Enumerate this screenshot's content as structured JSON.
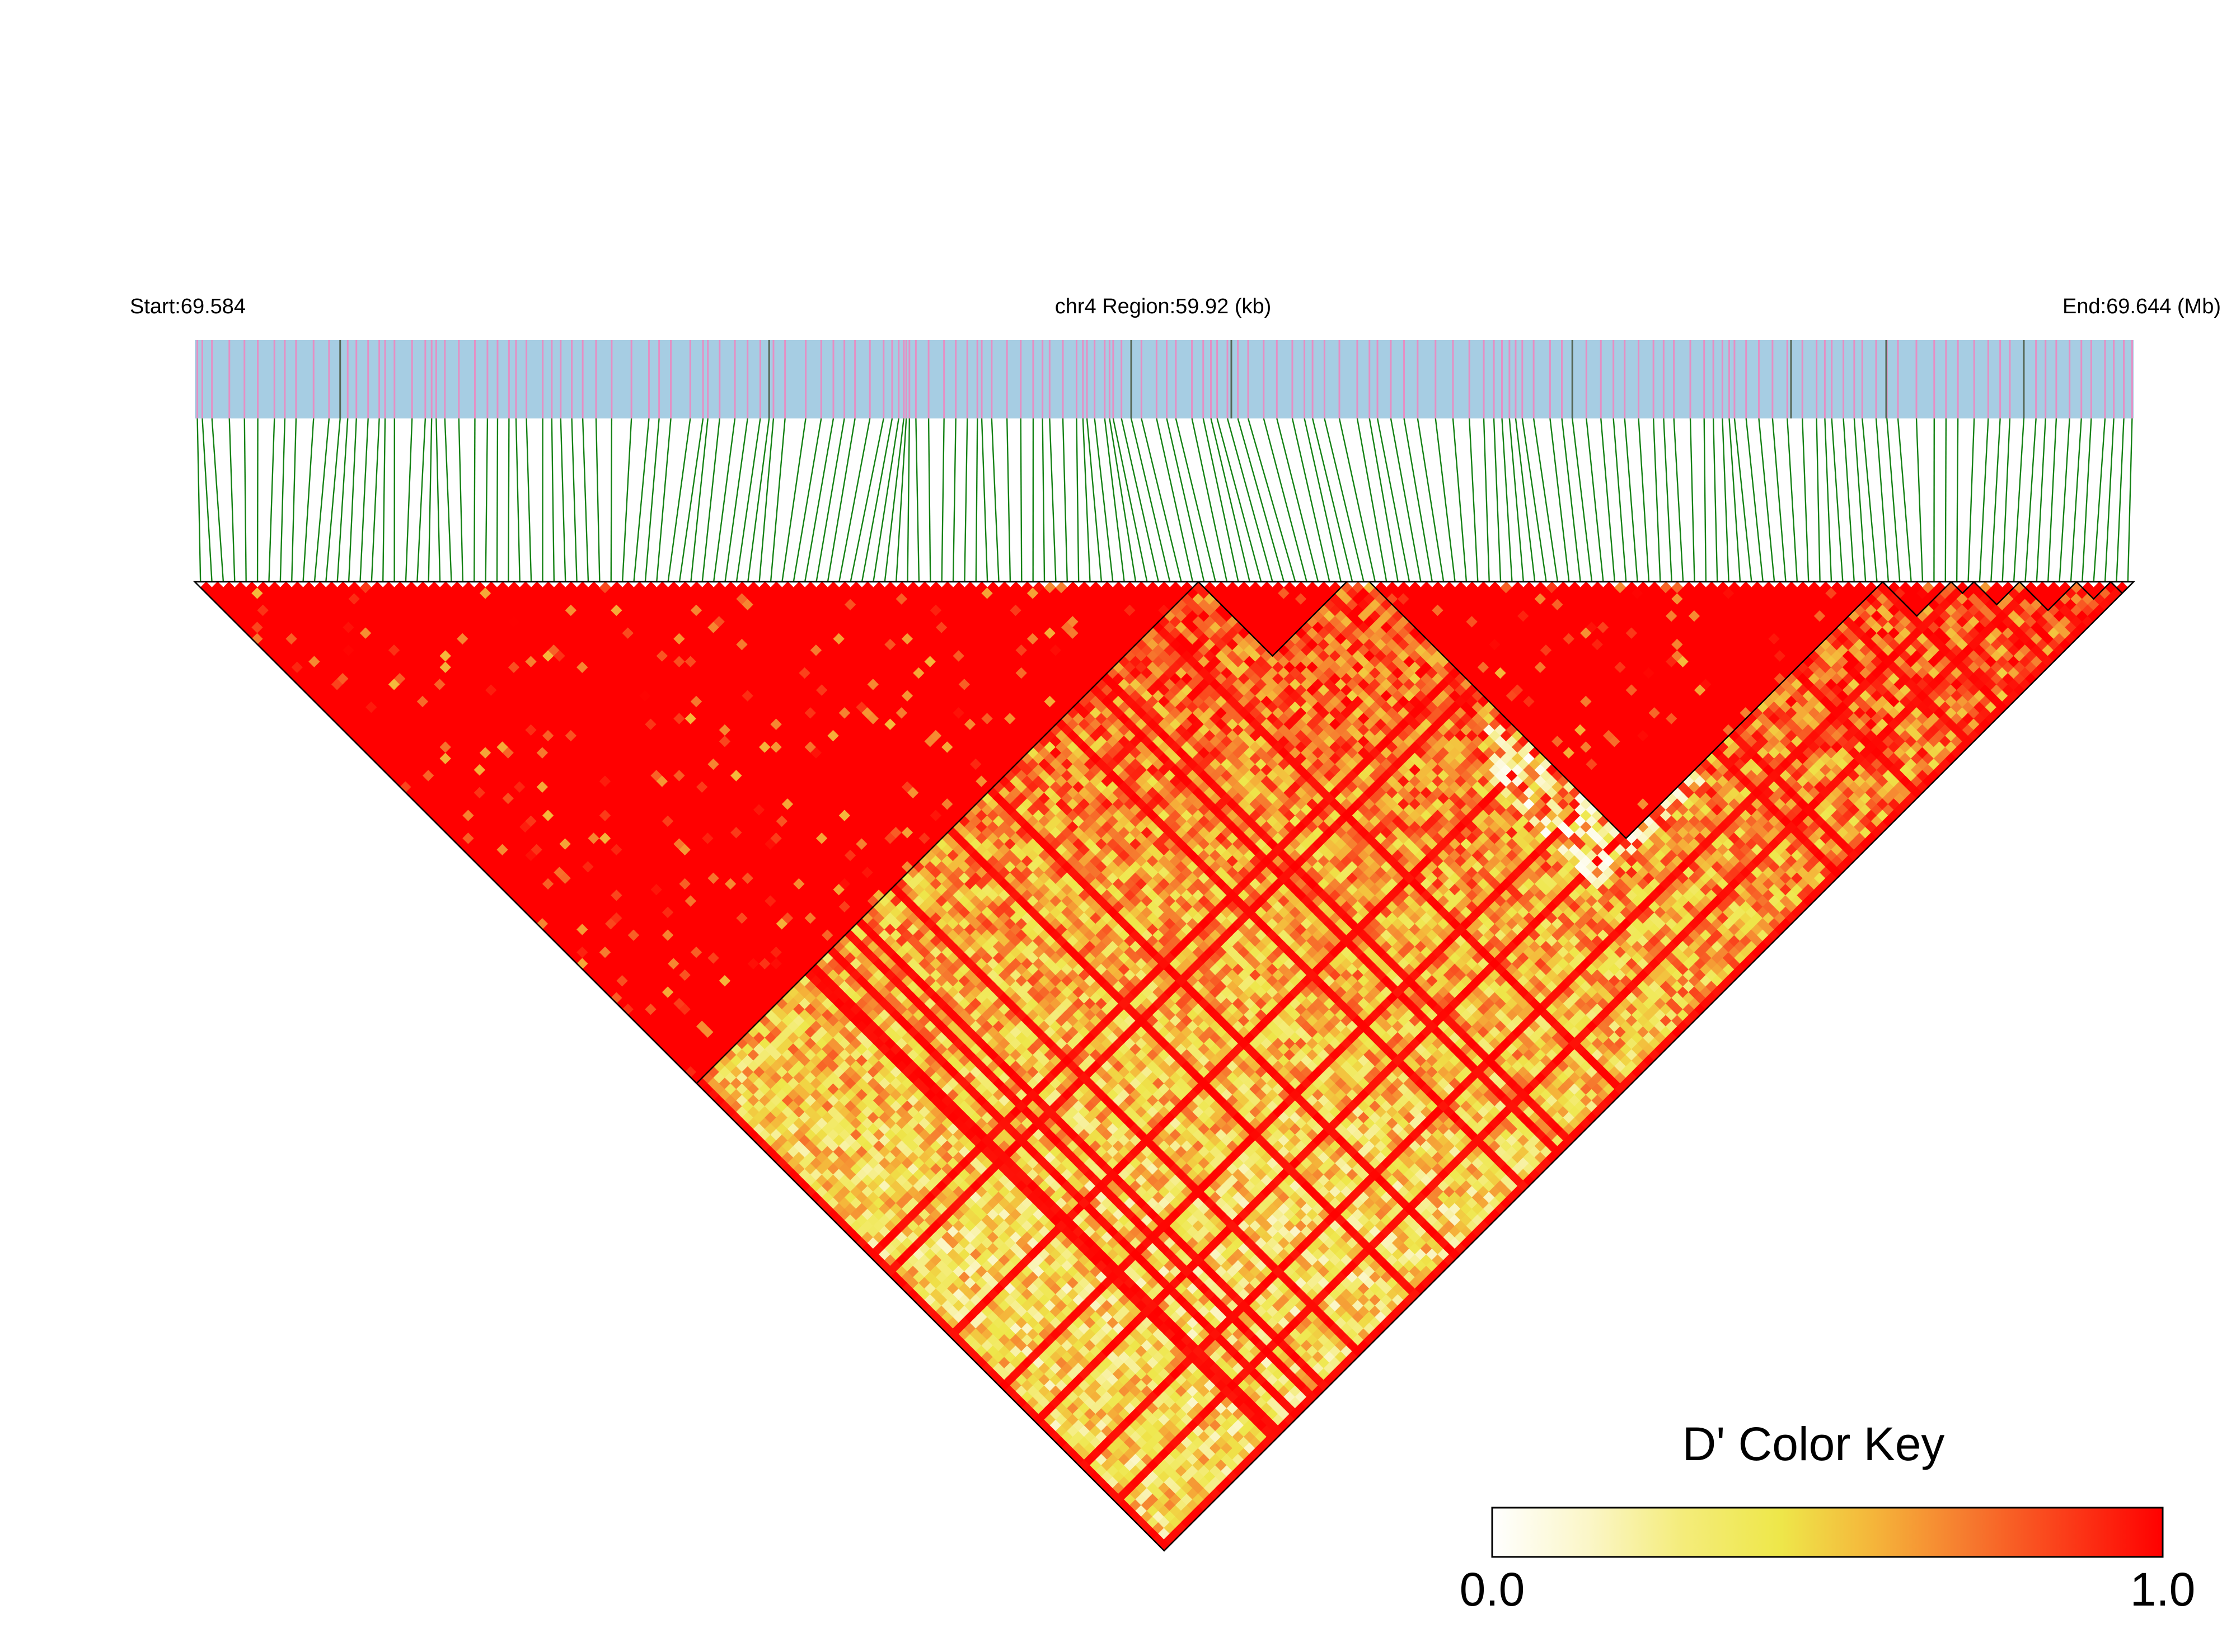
{
  "chart_data": {
    "type": "heatmap",
    "header": {
      "start_label": "Start:69.584",
      "region_label": "chr4 Region:59.92 (kb)",
      "end_label": "End:69.644 (Mb)"
    },
    "colors": {
      "track_bg": "#a6cde3",
      "snp_mark": "#e58fc4",
      "dark_mark": "#556655",
      "connector": "#148214",
      "high_ld": "#ff0000",
      "block_outline": "#000000"
    },
    "color_key": {
      "title": "D' Color Key",
      "min_label": "0.0",
      "max_label": "1.0",
      "stops": [
        "#ffffff",
        "#fbf6c8",
        "#f4ec7a",
        "#eee74a",
        "#f5b43a",
        "#f6782e",
        "#fb3c19",
        "#ff0000"
      ]
    }
  }
}
